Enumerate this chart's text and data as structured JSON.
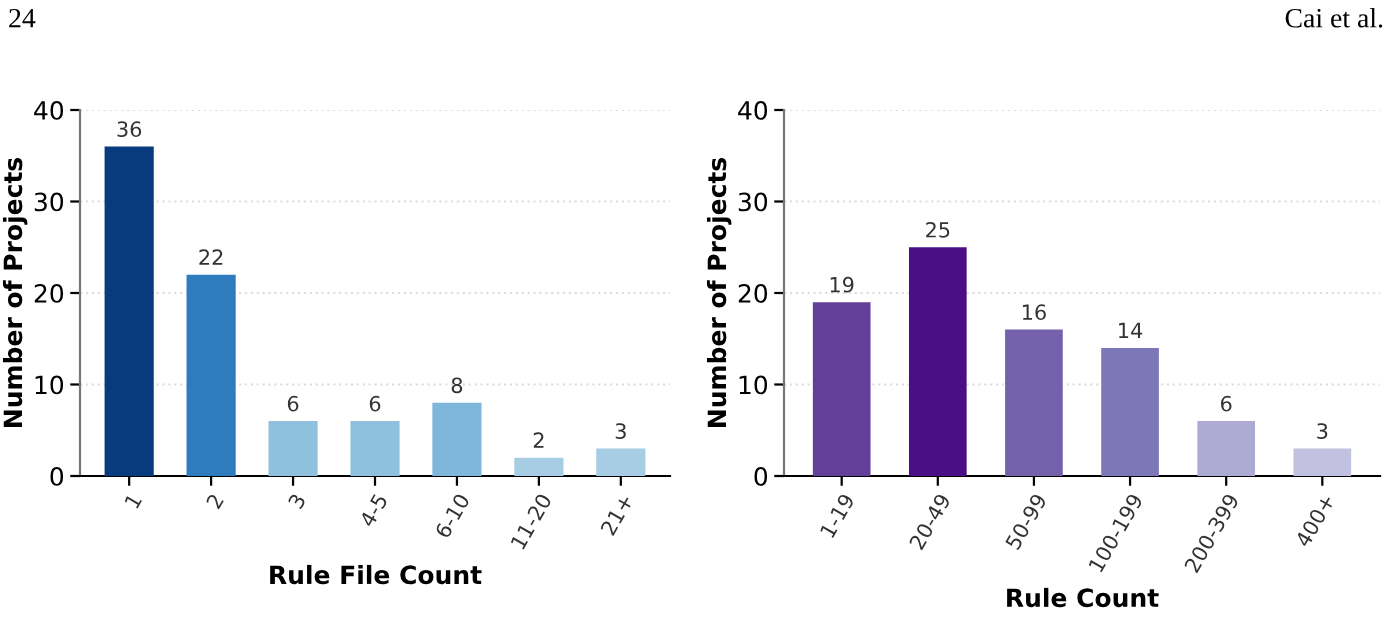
{
  "chart_data": [
    {
      "type": "bar",
      "xlabel": "Rule File Count",
      "ylabel": "Number of Projects",
      "annotations": [
        "24"
      ],
      "categories": [
        "1",
        "2",
        "3",
        "4-5",
        "6-10",
        "11-20",
        "21+"
      ],
      "values": [
        36,
        22,
        6,
        6,
        8,
        2,
        3
      ],
      "colors": [
        "#083b7d",
        "#2e7bbd",
        "#8fc1de",
        "#8fc1de",
        "#7fb6db",
        "#a6cde4",
        "#a6cde4"
      ],
      "ylim": [
        0,
        40
      ],
      "yticks": [
        0,
        10,
        20,
        30,
        40
      ],
      "grid": "y",
      "data_labels": true
    },
    {
      "type": "bar",
      "xlabel": "Rule Count",
      "ylabel": "Number of Projects",
      "annotations": [
        "Cai et al."
      ],
      "categories": [
        "1-19",
        "20-49",
        "50-99",
        "100-199",
        "200-399",
        "400+"
      ],
      "values": [
        19,
        25,
        16,
        14,
        6,
        3
      ],
      "colors": [
        "#643f99",
        "#4a0e85",
        "#7460ab",
        "#7d77b8",
        "#adaad3",
        "#c2c2e0"
      ],
      "ylim": [
        0,
        40
      ],
      "yticks": [
        0,
        10,
        20,
        30,
        40
      ],
      "grid": "y",
      "data_labels": true
    }
  ]
}
